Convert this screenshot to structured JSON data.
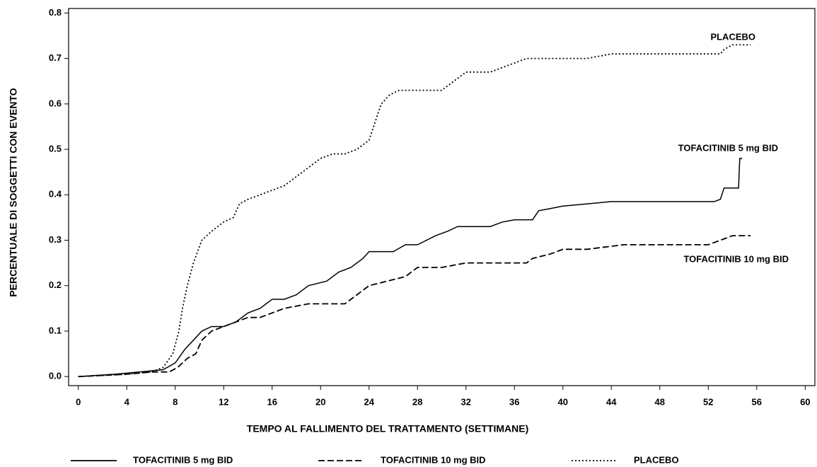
{
  "chart_data": {
    "type": "line",
    "x_label": "TEMPO AL FALLIMENTO DEL TRATTAMENTO (SETTIMANE)",
    "y_label": "PERCENTUALE DI SOGGETTI CON EVENTO",
    "xlim": [
      -0.8,
      60.8
    ],
    "ylim": [
      -0.02,
      0.81
    ],
    "xticks": [
      0,
      4,
      8,
      12,
      16,
      20,
      24,
      28,
      32,
      36,
      40,
      44,
      48,
      52,
      56,
      60
    ],
    "yticks": [
      {
        "value": 0,
        "label": "0.0"
      },
      0.1,
      0.2,
      0.3,
      0.4,
      0.5,
      0.6,
      0.7,
      0.8
    ],
    "series": [
      {
        "name": "TOFACITINIB 5 mg BID",
        "color": "#000000",
        "dash": "solid",
        "x": [
          0,
          3,
          5,
          7,
          8,
          8.8,
          9.5,
          10.2,
          11,
          12,
          13,
          14,
          15,
          16,
          17,
          18,
          19,
          20.5,
          21.5,
          22.5,
          23.5,
          24,
          26,
          27,
          28,
          29.5,
          30.5,
          31.3,
          34,
          35,
          36,
          37.5,
          38,
          39,
          40,
          42,
          44,
          52.5,
          53,
          53.3,
          54.5,
          54.6,
          54.8
        ],
        "values": [
          0,
          0.005,
          0.01,
          0.015,
          0.03,
          0.06,
          0.08,
          0.1,
          0.11,
          0.11,
          0.12,
          0.14,
          0.15,
          0.17,
          0.17,
          0.18,
          0.2,
          0.21,
          0.23,
          0.24,
          0.26,
          0.275,
          0.275,
          0.29,
          0.29,
          0.31,
          0.32,
          0.33,
          0.33,
          0.34,
          0.345,
          0.345,
          0.365,
          0.37,
          0.375,
          0.38,
          0.385,
          0.385,
          0.39,
          0.415,
          0.415,
          0.48,
          0.48
        ]
      },
      {
        "name": "TOFACITINIB 10 mg BID",
        "color": "#000000",
        "dash": "dashed",
        "x": [
          0,
          4,
          6,
          7.5,
          8.2,
          9,
          9.7,
          10.2,
          11,
          12,
          13,
          14,
          15,
          16,
          17,
          19,
          22,
          23,
          24,
          25.5,
          27,
          28,
          30,
          32,
          37,
          37.5,
          39,
          40,
          42,
          45,
          52,
          53,
          54,
          55.5
        ],
        "values": [
          0,
          0.005,
          0.01,
          0.01,
          0.02,
          0.04,
          0.05,
          0.08,
          0.1,
          0.11,
          0.12,
          0.13,
          0.13,
          0.14,
          0.15,
          0.16,
          0.16,
          0.18,
          0.2,
          0.21,
          0.22,
          0.24,
          0.24,
          0.25,
          0.25,
          0.26,
          0.27,
          0.28,
          0.28,
          0.29,
          0.29,
          0.3,
          0.31,
          0.31
        ]
      },
      {
        "name": "PLACEBO",
        "color": "#000000",
        "dash": "dotted",
        "x": [
          0,
          4,
          6,
          7,
          7.8,
          8.3,
          8.6,
          9,
          9.5,
          10.2,
          11,
          12,
          12.8,
          13.3,
          14,
          15,
          16,
          17,
          18,
          19,
          20,
          21,
          22,
          23,
          24,
          24.5,
          25,
          25.7,
          26.5,
          30,
          31,
          32,
          34,
          35,
          36,
          37,
          42,
          44,
          53,
          53.3,
          54,
          55.5
        ],
        "values": [
          0,
          0.005,
          0.01,
          0.02,
          0.05,
          0.1,
          0.15,
          0.2,
          0.25,
          0.3,
          0.32,
          0.34,
          0.35,
          0.38,
          0.39,
          0.4,
          0.41,
          0.42,
          0.44,
          0.46,
          0.48,
          0.49,
          0.49,
          0.5,
          0.52,
          0.56,
          0.6,
          0.62,
          0.63,
          0.63,
          0.65,
          0.67,
          0.67,
          0.68,
          0.69,
          0.7,
          0.7,
          0.71,
          0.71,
          0.72,
          0.73,
          0.73
        ]
      }
    ]
  }
}
